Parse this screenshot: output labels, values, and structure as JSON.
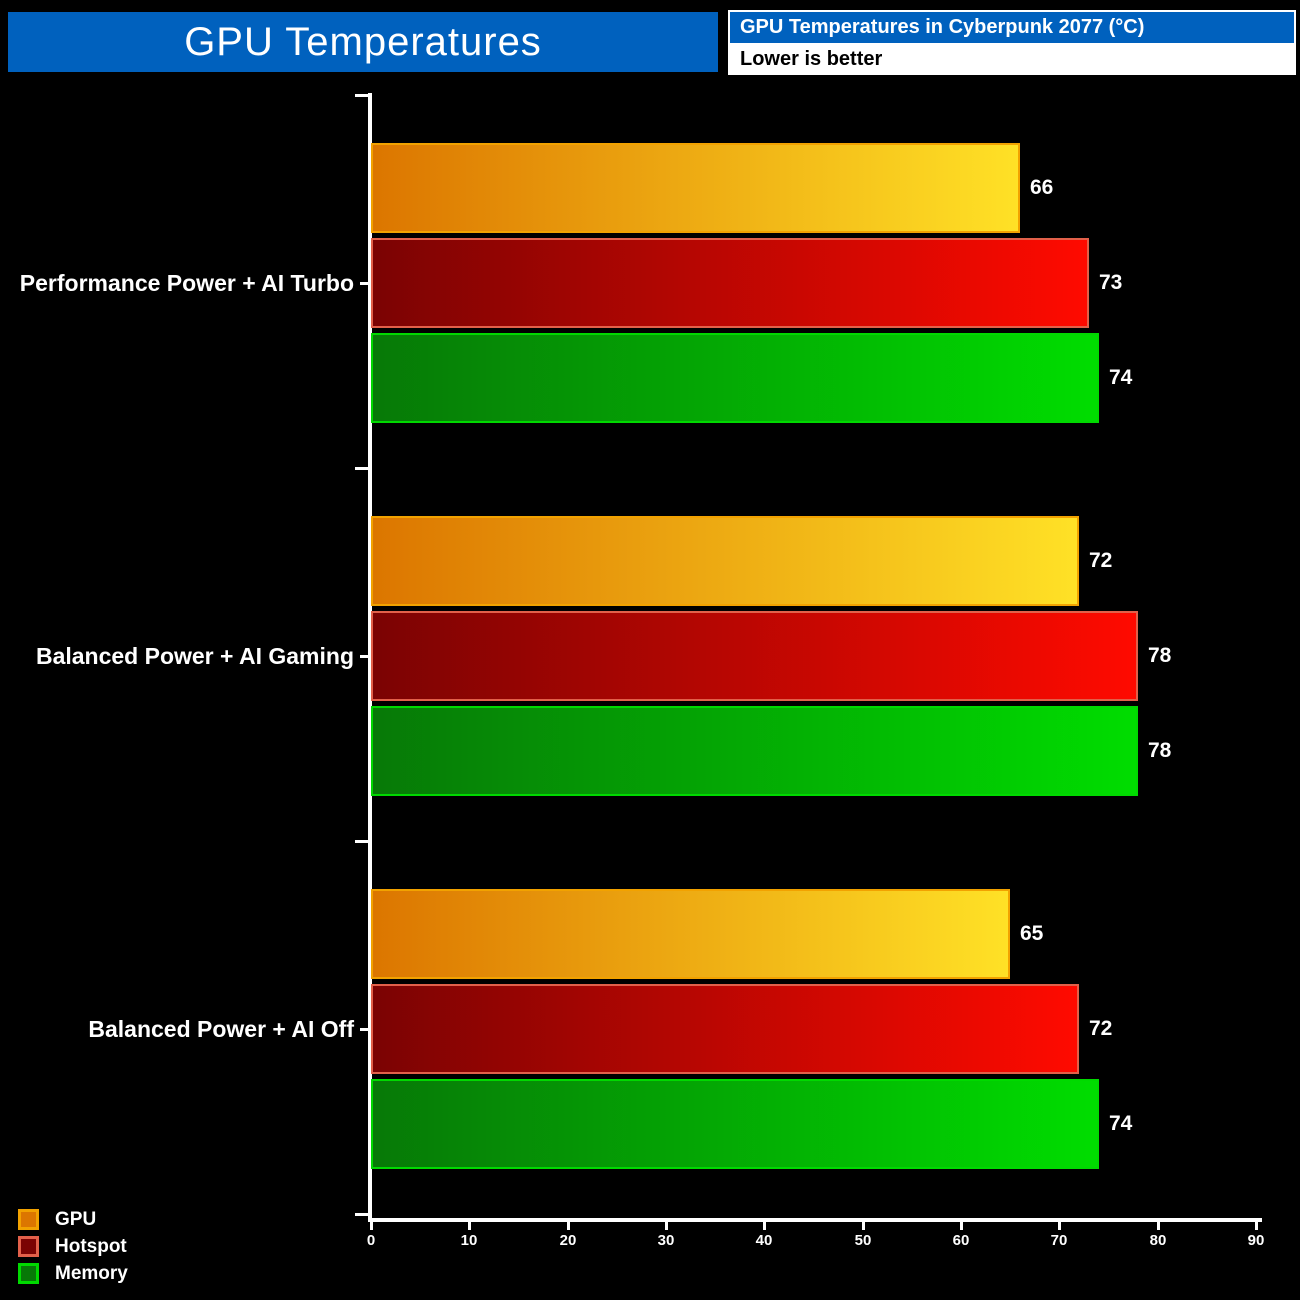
{
  "title": "GPU Temperatures",
  "subtitle": "GPU Temperatures in Cyberpunk 2077 (°C)",
  "note": "Lower is better",
  "colors": {
    "header_blue": "#0061BE",
    "background": "#000000",
    "axis": "#FFFFFF",
    "text": "#FFFFFF",
    "series": {
      "GPU": {
        "dark": "#DC7600",
        "bright": "#FFE126",
        "edge": "#F2A200"
      },
      "Hotspot": {
        "dark": "#7B0303",
        "bright": "#FF0A00",
        "edge": "#E2604A"
      },
      "Memory": {
        "dark": "#077907",
        "bright": "#00DD00",
        "edge": "#00D900"
      }
    }
  },
  "chart_data": {
    "type": "bar",
    "orientation": "horizontal",
    "title": "GPU Temperatures",
    "subtitle": "GPU Temperatures in Cyberpunk 2077 (°C)",
    "note": "Lower is better",
    "categories": [
      "Performance Power + AI Turbo",
      "Balanced Power + AI Gaming",
      "Balanced Power + AI Off"
    ],
    "series": [
      {
        "name": "GPU",
        "values": [
          66,
          72,
          65
        ]
      },
      {
        "name": "Hotspot",
        "values": [
          73,
          78,
          72
        ]
      },
      {
        "name": "Memory",
        "values": [
          74,
          78,
          74
        ]
      }
    ],
    "xlim": [
      0,
      90
    ],
    "xticks": [
      0,
      10,
      20,
      30,
      40,
      50,
      60,
      70,
      80,
      90
    ],
    "grid": false,
    "value_labels": true,
    "legend_position": "bottom-left",
    "legend_entries": [
      "GPU",
      "Hotspot",
      "Memory"
    ]
  }
}
